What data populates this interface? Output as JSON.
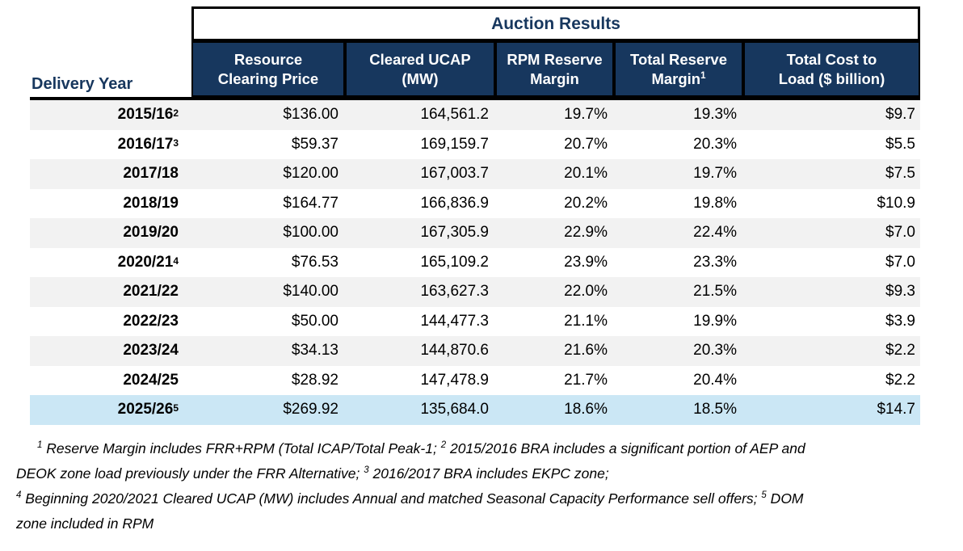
{
  "colors": {
    "navy": "#17375E",
    "stripe": "#F2F2F2",
    "highlight": "#CBE7F5",
    "border": "#000000"
  },
  "table": {
    "title": "Auction Results",
    "delivery_year_header": "Delivery Year",
    "columns": [
      {
        "line1": "Resource",
        "line2": "Clearing Price",
        "sup": ""
      },
      {
        "line1": "Cleared UCAP",
        "line2": "(MW)",
        "sup": ""
      },
      {
        "line1": "RPM Reserve",
        "line2": "Margin",
        "sup": ""
      },
      {
        "line1": "Total Reserve",
        "line2": "Margin",
        "sup": "1"
      },
      {
        "line1": "Total Cost to",
        "line2": "Load ($ billion)",
        "sup": ""
      }
    ],
    "rows": [
      {
        "year": "2015/16",
        "sup": "2",
        "price": "$136.00",
        "ucap": "164,561.2",
        "rpm_margin": "19.7%",
        "total_margin": "19.3%",
        "cost": "$9.7",
        "style": "gray"
      },
      {
        "year": "2016/17",
        "sup": "3",
        "price": "$59.37",
        "ucap": "169,159.7",
        "rpm_margin": "20.7%",
        "total_margin": "20.3%",
        "cost": "$5.5",
        "style": "white"
      },
      {
        "year": "2017/18",
        "sup": "",
        "price": "$120.00",
        "ucap": "167,003.7",
        "rpm_margin": "20.1%",
        "total_margin": "19.7%",
        "cost": "$7.5",
        "style": "gray"
      },
      {
        "year": "2018/19",
        "sup": "",
        "price": "$164.77",
        "ucap": "166,836.9",
        "rpm_margin": "20.2%",
        "total_margin": "19.8%",
        "cost": "$10.9",
        "style": "white"
      },
      {
        "year": "2019/20",
        "sup": "",
        "price": "$100.00",
        "ucap": "167,305.9",
        "rpm_margin": "22.9%",
        "total_margin": "22.4%",
        "cost": "$7.0",
        "style": "gray"
      },
      {
        "year": "2020/21",
        "sup": "4",
        "price": "$76.53",
        "ucap": "165,109.2",
        "rpm_margin": "23.9%",
        "total_margin": "23.3%",
        "cost": "$7.0",
        "style": "white"
      },
      {
        "year": "2021/22",
        "sup": "",
        "price": "$140.00",
        "ucap": "163,627.3",
        "rpm_margin": "22.0%",
        "total_margin": "21.5%",
        "cost": "$9.3",
        "style": "gray"
      },
      {
        "year": "2022/23",
        "sup": "",
        "price": "$50.00",
        "ucap": "144,477.3",
        "rpm_margin": "21.1%",
        "total_margin": "19.9%",
        "cost": "$3.9",
        "style": "white"
      },
      {
        "year": "2023/24",
        "sup": "",
        "price": "$34.13",
        "ucap": "144,870.6",
        "rpm_margin": "21.6%",
        "total_margin": "20.3%",
        "cost": "$2.2",
        "style": "gray"
      },
      {
        "year": "2024/25",
        "sup": "",
        "price": "$28.92",
        "ucap": "147,478.9",
        "rpm_margin": "21.7%",
        "total_margin": "20.4%",
        "cost": "$2.2",
        "style": "white"
      },
      {
        "year": "2025/26",
        "sup": "5",
        "price": "$269.92",
        "ucap": "135,684.0",
        "rpm_margin": "18.6%",
        "total_margin": "18.5%",
        "cost": "$14.7",
        "style": "blue"
      }
    ]
  },
  "footnotes": {
    "lines": [
      [
        {
          "sup": "1"
        },
        {
          "text": " Reserve Margin includes FRR+RPM (Total ICAP/Total Peak-1; "
        },
        {
          "sup": "2"
        },
        {
          "text": " 2015/2016 BRA includes a significant portion of AEP and"
        }
      ],
      [
        {
          "text": "DEOK zone load previously under the FRR Alternative; "
        },
        {
          "sup": "3"
        },
        {
          "text": " 2016/2017 BRA includes EKPC zone;"
        }
      ],
      [
        {
          "sup": "4"
        },
        {
          "text": " Beginning 2020/2021 Cleared UCAP (MW) includes Annual and matched Seasonal Capacity Performance sell offers; "
        },
        {
          "sup": "5"
        },
        {
          "text": " DOM"
        }
      ],
      [
        {
          "text": "zone included in RPM"
        }
      ]
    ]
  }
}
